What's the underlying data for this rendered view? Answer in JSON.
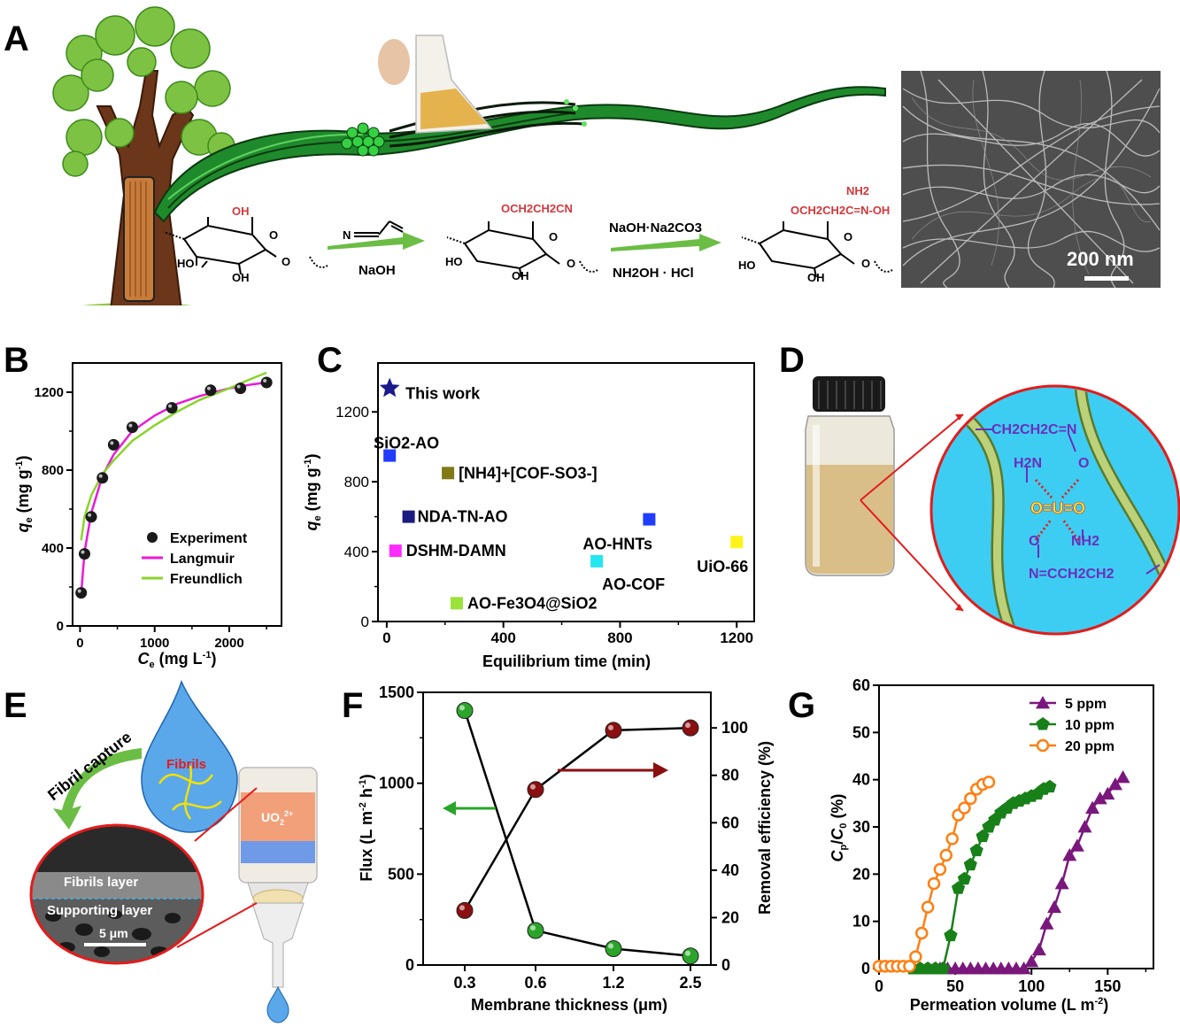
{
  "panels": {
    "A": {
      "letter": "A",
      "reagent1": "NaOH",
      "reagent2_top": "NaOH·Na2CO3",
      "reagent2_bottom": "NH2OH · HCl",
      "sub_oh": "OH",
      "sub_cn": "OCH2CH2CN",
      "sub_ao": "OCH2CH2C=N-OH",
      "sub_nh2": "NH2",
      "ring_ho": "HO",
      "ring_oh": "OH",
      "ring_o": "O",
      "scale_bar": "200 nm"
    },
    "B": {
      "letter": "B"
    },
    "C": {
      "letter": "C"
    },
    "D": {
      "letter": "D",
      "chem_top": "CH2CH2C=N",
      "chem_h2n": "H2N",
      "chem_o": "O",
      "chem_center": "O=U=O",
      "chem_nh2": "NH2",
      "chem_bottom": "N=CCH2CH2"
    },
    "E": {
      "letter": "E",
      "fibril_capture": "Fibril capture",
      "fibrils": "Fibrils",
      "uo2": "UO2 2+",
      "fibrils_layer": "Fibrils layer",
      "supporting_layer": "Supporting layer",
      "scale": "5 μm"
    },
    "F": {
      "letter": "F"
    },
    "G": {
      "letter": "G"
    }
  },
  "chart_data": [
    {
      "id": "B",
      "type": "scatter",
      "xlabel": "Ce (mg L-1)",
      "ylabel": "qe (mg g-1)",
      "xlim": [
        -100,
        2700
      ],
      "ylim": [
        0,
        1350
      ],
      "xticks": [
        0,
        1000,
        2000
      ],
      "xminor": [
        500,
        1500,
        2500
      ],
      "yticks": [
        0,
        400,
        800,
        1200
      ],
      "yminor": [
        200,
        600,
        1000
      ],
      "legend": [
        "Experiment",
        "Langmuir",
        "Freundlich"
      ],
      "series": [
        {
          "name": "Experiment",
          "x": [
            15,
            60,
            150,
            300,
            450,
            700,
            1230,
            1750,
            2150,
            2500
          ],
          "y": [
            170,
            370,
            560,
            760,
            930,
            1020,
            1120,
            1210,
            1220,
            1250
          ],
          "color": "#222222"
        },
        {
          "name": "Langmuir",
          "x": [
            15,
            60,
            150,
            300,
            450,
            700,
            1000,
            1300,
            1600,
            2000,
            2300,
            2500
          ],
          "y": [
            165,
            380,
            580,
            770,
            880,
            1000,
            1080,
            1140,
            1180,
            1220,
            1240,
            1250
          ],
          "color": "#e91ad8"
        },
        {
          "name": "Freundlich",
          "x": [
            15,
            60,
            150,
            300,
            450,
            700,
            1000,
            1300,
            1600,
            2000,
            2300,
            2500
          ],
          "y": [
            440,
            560,
            670,
            780,
            850,
            950,
            1030,
            1100,
            1160,
            1220,
            1270,
            1300
          ],
          "color": "#8ad42b"
        }
      ]
    },
    {
      "id": "C",
      "type": "scatter",
      "xlabel": "Equilibrium time (min)",
      "ylabel": "qe (mg g-1)",
      "xlim": [
        -30,
        1260
      ],
      "ylim": [
        0,
        1480
      ],
      "xticks": [
        0,
        400,
        800,
        1200
      ],
      "xminor": [
        200,
        600,
        1000
      ],
      "yticks": [
        0,
        400,
        800,
        1200
      ],
      "yminor": [
        200,
        600,
        1000
      ],
      "points": [
        {
          "label": "This work",
          "x": 10,
          "y": 1335,
          "color": "#1a1a8c",
          "marker": "star"
        },
        {
          "label": "SiO2-AO",
          "x": 10,
          "y": 950,
          "color": "#1f3cff",
          "marker": "square"
        },
        {
          "label": "[NH4]+[COF-SO3-]",
          "x": 210,
          "y": 850,
          "color": "#7f7a15",
          "marker": "square"
        },
        {
          "label": "NDA-TN-AO",
          "x": 75,
          "y": 600,
          "color": "#1b1c80",
          "marker": "square"
        },
        {
          "label": "DSHM-DAMN",
          "x": 30,
          "y": 405,
          "color": "#ff2bff",
          "marker": "square"
        },
        {
          "label": "AO-HNTs",
          "x": 900,
          "y": 585,
          "color": "#1f3cff",
          "marker": "square"
        },
        {
          "label": "AO-COF",
          "x": 720,
          "y": 345,
          "color": "#23e6f0",
          "marker": "square"
        },
        {
          "label": "UiO-66",
          "x": 1200,
          "y": 455,
          "color": "#fff31a",
          "marker": "square"
        },
        {
          "label": "AO-Fe3O4@SiO2",
          "x": 240,
          "y": 105,
          "color": "#9be23a",
          "marker": "square"
        }
      ]
    },
    {
      "id": "F",
      "type": "line",
      "xlabel": "Membrane thickness (μm)",
      "ylabel": "Flux (L m-2 h-1)",
      "y2label": "Removal efficiency (%)",
      "categories": [
        "0.3",
        "0.6",
        "1.2",
        "2.5"
      ],
      "ylim": [
        0,
        1500
      ],
      "yticks": [
        0,
        500,
        1000,
        1500
      ],
      "y2lim": [
        0,
        115
      ],
      "y2ticks": [
        0,
        20,
        40,
        60,
        80,
        100
      ],
      "series": [
        {
          "name": "Flux",
          "axis": "left",
          "values": [
            1400,
            190,
            90,
            50
          ],
          "color": "#2aa52a"
        },
        {
          "name": "Removal efficiency",
          "axis": "right",
          "values": [
            23,
            74,
            99,
            100
          ],
          "color": "#8b0f10"
        }
      ]
    },
    {
      "id": "G",
      "type": "line",
      "xlabel": "Permeation volume (L m-2)",
      "ylabel": "Cp/C0 (%)",
      "xlim": [
        0,
        180
      ],
      "ylim": [
        0,
        60
      ],
      "xticks": [
        0,
        50,
        100,
        150
      ],
      "yticks": [
        0,
        10,
        20,
        30,
        40,
        50,
        60
      ],
      "legend": [
        "5  ppm",
        "10 ppm",
        "20 ppm"
      ],
      "series": [
        {
          "name": "5  ppm",
          "color": "#7a177c",
          "marker": "triangle",
          "x": [
            40,
            45,
            50,
            55,
            60,
            65,
            70,
            75,
            80,
            85,
            90,
            95,
            100,
            105,
            110,
            115,
            120,
            125,
            130,
            135,
            140,
            145,
            150,
            155,
            160
          ],
          "y": [
            0,
            0,
            0,
            0,
            0,
            0,
            0,
            0,
            0,
            0,
            0,
            0,
            1.5,
            4,
            9.5,
            13,
            18,
            24,
            26,
            30,
            34,
            36,
            37,
            39,
            40.5
          ]
        },
        {
          "name": "10 ppm",
          "color": "#188018",
          "marker": "pentagon",
          "x": [
            22,
            27,
            32,
            37,
            42,
            47,
            52,
            56,
            60,
            64,
            68,
            72,
            76,
            80,
            84,
            88,
            92,
            96,
            100,
            104,
            108,
            112
          ],
          "y": [
            0,
            0,
            0,
            0,
            0,
            7,
            17,
            19,
            22,
            25,
            28,
            30,
            31.5,
            33,
            34,
            35,
            35.5,
            36,
            36.5,
            37,
            38,
            38.5
          ]
        },
        {
          "name": "20 ppm",
          "color": "#ff7f12",
          "marker": "circle",
          "x": [
            0,
            4,
            8,
            12,
            16,
            20,
            24,
            28,
            32,
            36,
            40,
            44,
            48,
            52,
            56,
            60,
            64,
            68,
            72
          ],
          "y": [
            0.5,
            0.5,
            0.5,
            0.5,
            0.5,
            0.5,
            2.5,
            7.5,
            13,
            18,
            21,
            24,
            27.5,
            32.5,
            34,
            36,
            38,
            39,
            39.5
          ]
        }
      ]
    }
  ]
}
